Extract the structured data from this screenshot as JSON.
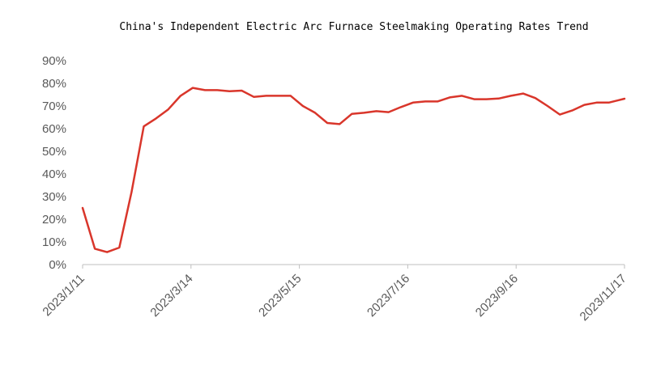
{
  "chart_data": {
    "type": "line",
    "title": "China's Independent Electric Arc Furnace Steelmaking Operating Rates Trend",
    "xlabel": "",
    "ylabel": "",
    "ylim": [
      0,
      0.9
    ],
    "y_tick_labels": [
      "0%",
      "10%",
      "20%",
      "30%",
      "40%",
      "50%",
      "60%",
      "70%",
      "80%",
      "90%"
    ],
    "x_tick_labels": [
      "2023/1/11",
      "2023/3/14",
      "2023/5/15",
      "2023/7/16",
      "2023/9/16",
      "2023/11/17"
    ],
    "grid": false,
    "legend": "none",
    "series_color": "#d9362b",
    "axis_color": "#bfbfbf",
    "x": [
      "2023/1/11",
      "2023/1/18",
      "2023/1/25",
      "2023/2/1",
      "2023/2/8",
      "2023/2/15",
      "2023/2/22",
      "2023/3/1",
      "2023/3/8",
      "2023/3/15",
      "2023/3/22",
      "2023/3/29",
      "2023/4/5",
      "2023/4/12",
      "2023/4/19",
      "2023/4/26",
      "2023/5/3",
      "2023/5/10",
      "2023/5/17",
      "2023/5/24",
      "2023/5/31",
      "2023/6/7",
      "2023/6/14",
      "2023/6/21",
      "2023/6/28",
      "2023/7/5",
      "2023/7/12",
      "2023/7/19",
      "2023/7/26",
      "2023/8/2",
      "2023/8/9",
      "2023/8/16",
      "2023/8/23",
      "2023/8/30",
      "2023/9/6",
      "2023/9/13",
      "2023/9/20",
      "2023/9/27",
      "2023/10/4",
      "2023/10/11",
      "2023/10/18",
      "2023/10/25",
      "2023/11/1",
      "2023/11/8",
      "2023/11/17"
    ],
    "series": [
      {
        "values": [
          0.25,
          0.07,
          0.055,
          0.075,
          0.32,
          0.61,
          0.645,
          0.685,
          0.745,
          0.78,
          0.77,
          0.77,
          0.765,
          0.768,
          0.74,
          0.745,
          0.745,
          0.745,
          0.7,
          0.67,
          0.625,
          0.62,
          0.665,
          0.67,
          0.677,
          0.673,
          0.695,
          0.715,
          0.72,
          0.72,
          0.738,
          0.745,
          0.73,
          0.73,
          0.733,
          0.745,
          0.755,
          0.735,
          0.7,
          0.662,
          0.68,
          0.705,
          0.715,
          0.715,
          0.732
        ]
      }
    ]
  }
}
